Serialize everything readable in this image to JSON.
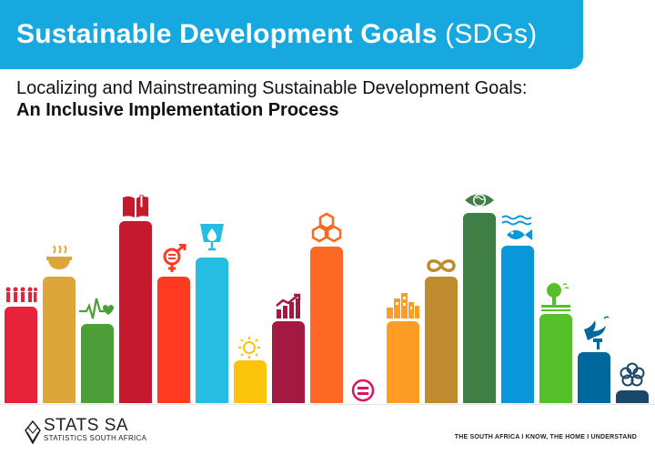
{
  "header": {
    "title": "Sustainable Development Goals",
    "title_abbr": "(SDGs)",
    "subtitle_line1": "Localizing and Mainstreaming Sustainable Development Goals:",
    "subtitle_line2": "An Inclusive Implementation Process"
  },
  "goals": [
    {
      "color": "#e5243b",
      "icon": "people-icon"
    },
    {
      "color": "#dda63a",
      "icon": "food-bowl-icon"
    },
    {
      "color": "#4c9f38",
      "icon": "heartbeat-icon"
    },
    {
      "color": "#c5192d",
      "icon": "book-icon"
    },
    {
      "color": "#ff3a21",
      "icon": "gender-equality-icon"
    },
    {
      "color": "#26bde2",
      "icon": "water-drop-icon"
    },
    {
      "color": "#fcc30b",
      "icon": "sun-icon"
    },
    {
      "color": "#a21942",
      "icon": "growth-chart-icon"
    },
    {
      "color": "#fd6925",
      "icon": "cubes-icon"
    },
    {
      "color": "#dd1367",
      "icon": "equality-icon"
    },
    {
      "color": "#fd9d24",
      "icon": "city-icon"
    },
    {
      "color": "#bf8b2e",
      "icon": "infinity-icon"
    },
    {
      "color": "#3f7e44",
      "icon": "eye-globe-icon"
    },
    {
      "color": "#0a97d9",
      "icon": "fish-icon"
    },
    {
      "color": "#56c02b",
      "icon": "tree-icon"
    },
    {
      "color": "#00689d",
      "icon": "dove-icon"
    },
    {
      "color": "#19486a",
      "icon": "partnership-icon"
    }
  ],
  "footer": {
    "logo_title": "STATS SA",
    "logo_subtitle": "STATISTICS SOUTH AFRICA",
    "tagline": "THE SOUTH AFRICA I KNOW, THE HOME I UNDERSTAND"
  }
}
